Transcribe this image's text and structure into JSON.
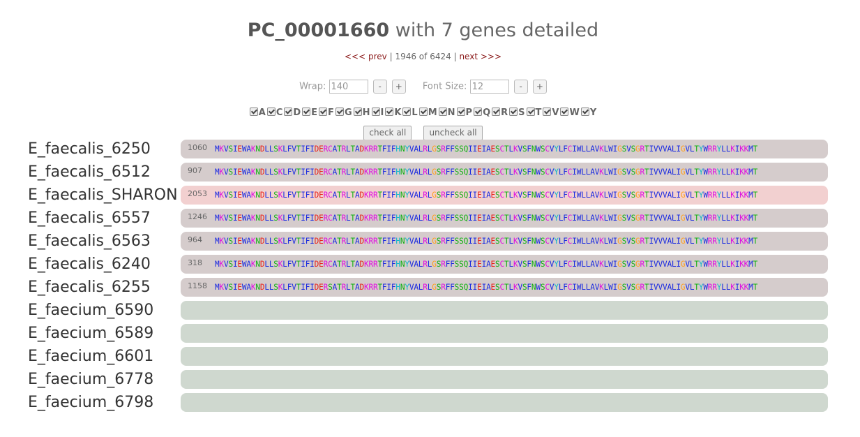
{
  "header": {
    "title_id": "PC_00001660",
    "title_rest": "with 7 genes detailed"
  },
  "nav": {
    "prev_label": "<<< prev",
    "position": "1946 of 6424",
    "next_label": "next >>>",
    "separator": "|"
  },
  "controls": {
    "wrap_label": "Wrap:",
    "wrap_value": "140",
    "font_label": "Font Size:",
    "font_value": "12",
    "minus": "-",
    "plus": "+"
  },
  "letters": [
    "A",
    "C",
    "D",
    "E",
    "F",
    "G",
    "H",
    "I",
    "K",
    "L",
    "M",
    "N",
    "P",
    "Q",
    "R",
    "S",
    "T",
    "V",
    "W",
    "Y"
  ],
  "buttons": {
    "check_all": "check all",
    "uncheck_all": "uncheck all"
  },
  "colors": {
    "red": "#e8201a",
    "magenta": "#e010e0",
    "blue": "#1a2ae0",
    "green": "#10b010",
    "orange": "#ffa020",
    "cyan": "#10b8c8",
    "yellow": "#e8e000",
    "bar": "#d5cccc",
    "bar_highlight": "#f2d0d0",
    "bar_empty": "#cfd8cf"
  },
  "genes": [
    {
      "name": "E_faecalis_6250",
      "length": "1060",
      "sequence": "MKVSIEWAKNDLLSKLFVTIFIDERCATRLTADKRRTFIFHNYVALRLGSRFFSSQIIEIAESCTLKVSFNWSCVYLFCIWLLAVKLWIGSVSGRTIVVVALIGVLTYWRRYLLKIKKMT",
      "highlight": false
    },
    {
      "name": "E_faecalis_6512",
      "length": "907",
      "sequence": "MKVSIEWAKNDLLSKLFVTIFIDERCATRLTADKRRTFIFHNYVALRLGSRFFSSQIIEIAESCTLKVSFNWSCVYLFCIWLLAVKLWIGSVSGRTIVVVALIGVLTYWRRYLLKIKKMT",
      "highlight": false
    },
    {
      "name": "E_faecalis_SHARON",
      "length": "2053",
      "sequence": "MKVSIEWAKNDLLSKLFVTIFIDERCATRLTADKRRTFIFHNYVALRLGSRFFSSQIIEIAESCTLKVSFNWSCVYLFCIWLLAVKLWIGSVSGRTIVVVALIGVLTYWRRYLLKIKKMT",
      "highlight": true
    },
    {
      "name": "E_faecalis_6557",
      "length": "1246",
      "sequence": "MKVSIEWAKNDLLSKLFVTIFIDERCATRLTADKRRTFIFHNYVALRLGSRFFSSQIIEIAESCTLKVSFNWSCVYLFCIWLLAVKLWIGSVSGRTIVVVALIGVLTYWRRYLLKIKKMT",
      "highlight": false
    },
    {
      "name": "E_faecalis_6563",
      "length": "964",
      "sequence": "MKVSIEWAKNDLLSKLFVTIFIDERCATRLTADKRRTFIFHNYVALRLGSRFFSSQIIEIAESCTLKVSFNWSCVYLFCIWLLAVKLWIGSVSGRTIVVVALIGVLTYWRRYLLKIKKMT",
      "highlight": false
    },
    {
      "name": "E_faecalis_6240",
      "length": "318",
      "sequence": "MKVSIEWAKNDLLSKLFVTIFIDERCATRLTADKRRTFIFHNYVALRLGSRFFSSQIIEIAESCTLKVSFNWSCVYLFCIWLLAVKLWIGSVSGRTIVVVALIGVLTYWRRYLLKIKKMT",
      "highlight": false
    },
    {
      "name": "E_faecalis_6255",
      "length": "1158",
      "sequence": "MKVSIEWAKNDLLSKLFVTIFIDERSATRLTADKRRTFIFHNYVALRLGSRFFSSQIIEIAESCTLKVSFNWSCVYLFCIWLLAVKLWIGSVSGRTIVVVALIGVLTYWRRYLLKIKKMT",
      "highlight": false
    },
    {
      "name": "E_faecium_6590",
      "length": "",
      "sequence": "",
      "highlight": false
    },
    {
      "name": "E_faecium_6589",
      "length": "",
      "sequence": "",
      "highlight": false
    },
    {
      "name": "E_faecium_6601",
      "length": "",
      "sequence": "",
      "highlight": false
    },
    {
      "name": "E_faecium_6778",
      "length": "",
      "sequence": "",
      "highlight": false
    },
    {
      "name": "E_faecium_6798",
      "length": "",
      "sequence": "",
      "highlight": false
    }
  ]
}
